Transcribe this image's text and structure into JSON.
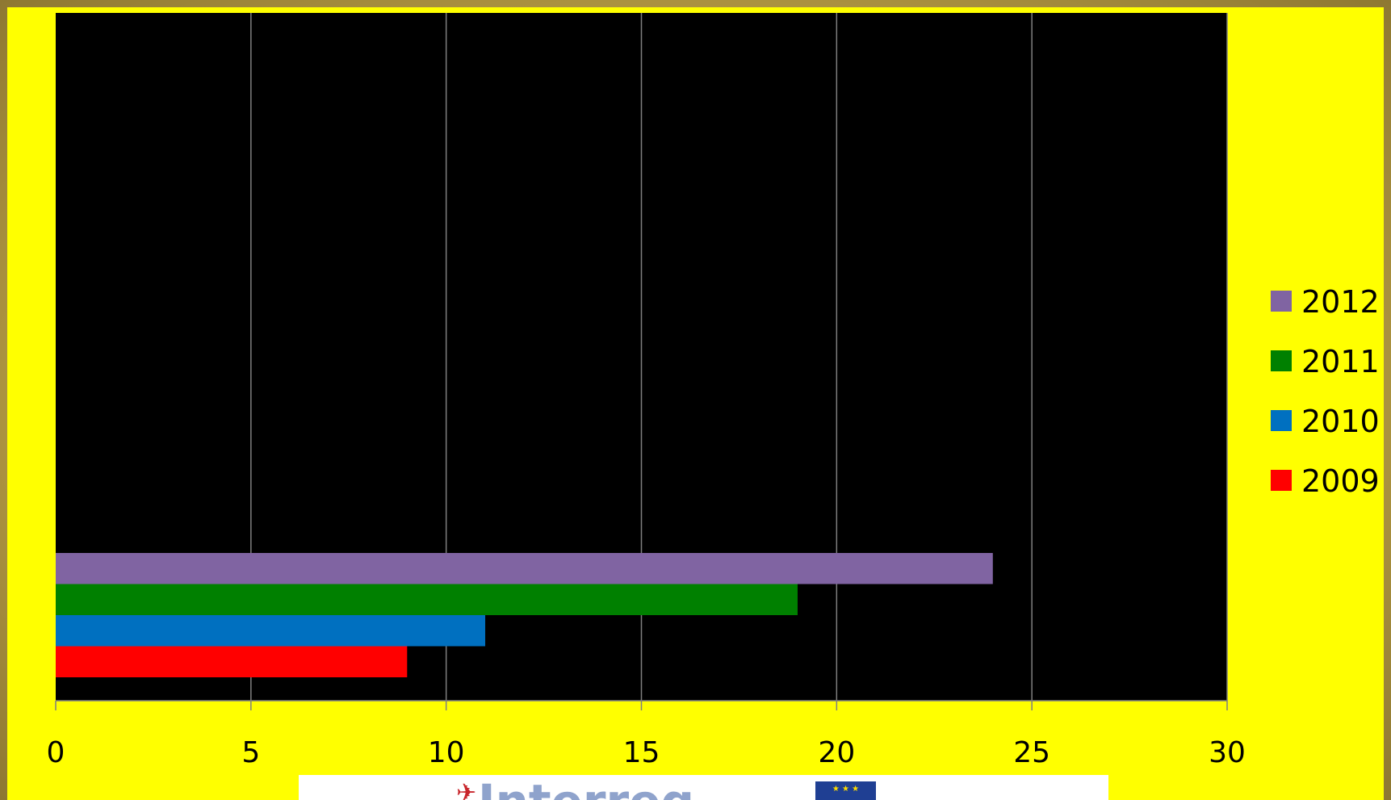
{
  "chart_data": {
    "type": "bar",
    "orientation": "horizontal",
    "title": "",
    "xlabel": "",
    "ylabel": "",
    "categories": [
      ""
    ],
    "series": [
      {
        "name": "2009",
        "values": [
          9
        ],
        "color": "#ff0000"
      },
      {
        "name": "2010",
        "values": [
          11
        ],
        "color": "#0070c0"
      },
      {
        "name": "2011",
        "values": [
          19
        ],
        "color": "#008000"
      },
      {
        "name": "2012",
        "values": [
          24
        ],
        "color": "#8064a2"
      }
    ],
    "xlim": [
      0,
      30
    ],
    "xticks": [
      "0",
      "5",
      "10",
      "15",
      "20",
      "25",
      "30"
    ],
    "grid": true,
    "legend": "right",
    "legend_order": [
      "2012",
      "2011",
      "2010",
      "2009"
    ],
    "plot_background": "#000000",
    "chart_background": "#ffff00"
  },
  "footer": {
    "logo_text": "Interreg",
    "logo_mark": "✈",
    "flag": "★ ★ ★"
  }
}
